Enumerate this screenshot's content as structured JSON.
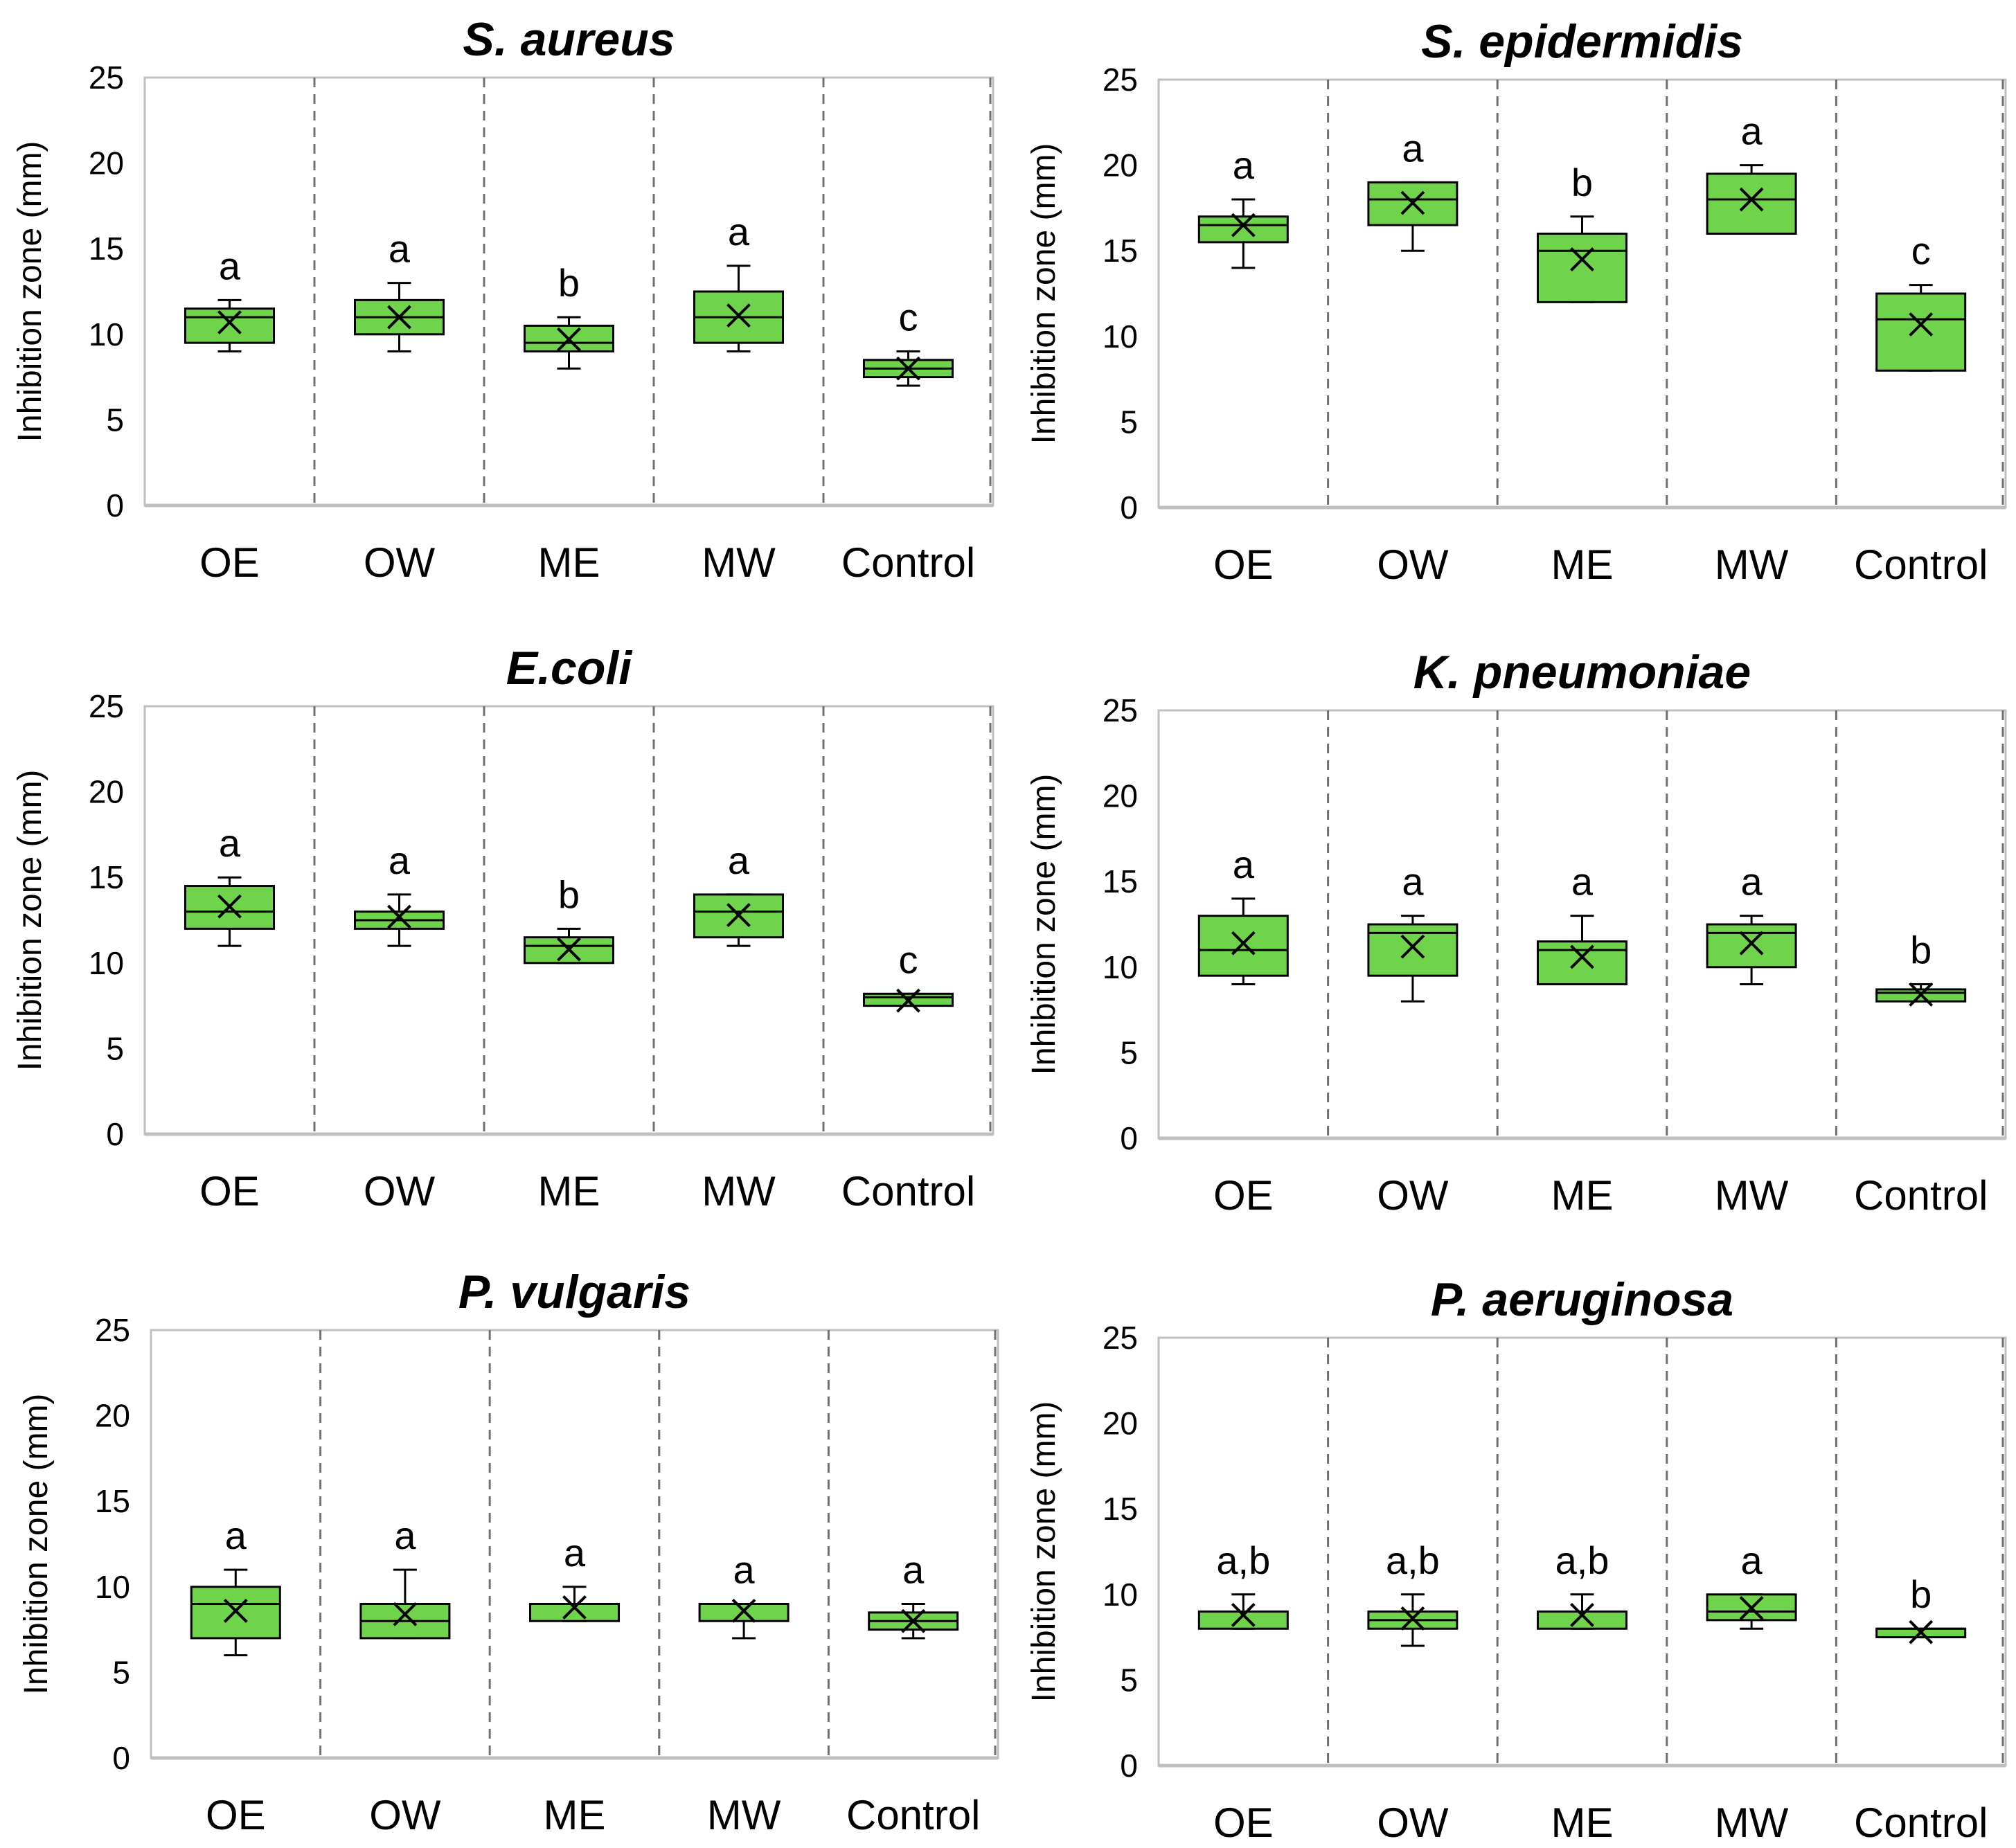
{
  "chart_data": [
    {
      "type": "box",
      "title": "S. aureus",
      "ylabel": "Inhibition zone (mm)",
      "ylim": [
        0,
        25
      ],
      "yticks": [
        0,
        5,
        10,
        15,
        20,
        25
      ],
      "categories": [
        "OE",
        "OW",
        "ME",
        "MW",
        "Control"
      ],
      "boxes": [
        {
          "min": 9,
          "q1": 9.5,
          "median": 11,
          "q3": 11.5,
          "max": 12,
          "mean": 10.7,
          "letter": "a"
        },
        {
          "min": 9,
          "q1": 10,
          "median": 11,
          "q3": 12,
          "max": 13,
          "mean": 11,
          "letter": "a"
        },
        {
          "min": 8,
          "q1": 9,
          "median": 9.5,
          "q3": 10.5,
          "max": 11,
          "mean": 9.7,
          "letter": "b"
        },
        {
          "min": 9,
          "q1": 9.5,
          "median": 11,
          "q3": 12.5,
          "max": 14,
          "mean": 11.1,
          "letter": "a"
        },
        {
          "min": 7,
          "q1": 7.5,
          "median": 8,
          "q3": 8.5,
          "max": 9,
          "mean": 8,
          "letter": "c"
        }
      ]
    },
    {
      "type": "box",
      "title": "S. epidermidis",
      "ylabel": "Inhibition zone (mm)",
      "ylim": [
        0,
        25
      ],
      "yticks": [
        0,
        5,
        10,
        15,
        20,
        25
      ],
      "categories": [
        "OE",
        "OW",
        "ME",
        "MW",
        "Control"
      ],
      "boxes": [
        {
          "min": 14,
          "q1": 15.5,
          "median": 16.5,
          "q3": 17,
          "max": 18,
          "mean": 16.5,
          "letter": "a"
        },
        {
          "min": 15,
          "q1": 16.5,
          "median": 18,
          "q3": 19,
          "max": 19,
          "mean": 17.8,
          "letter": "a"
        },
        {
          "min": 12,
          "q1": 12,
          "median": 15,
          "q3": 16,
          "max": 17,
          "mean": 14.5,
          "letter": "b"
        },
        {
          "min": 16,
          "q1": 16,
          "median": 18,
          "q3": 19.5,
          "max": 20,
          "mean": 18,
          "letter": "a"
        },
        {
          "min": 8,
          "q1": 8,
          "median": 11,
          "q3": 12.5,
          "max": 13,
          "mean": 10.7,
          "letter": "c"
        }
      ]
    },
    {
      "type": "box",
      "title": "E.coli",
      "ylabel": "Inhibition zone (mm)",
      "ylim": [
        0,
        25
      ],
      "yticks": [
        0,
        5,
        10,
        15,
        20,
        25
      ],
      "categories": [
        "OE",
        "OW",
        "ME",
        "MW",
        "Control"
      ],
      "boxes": [
        {
          "min": 11,
          "q1": 12,
          "median": 13,
          "q3": 14.5,
          "max": 15,
          "mean": 13.3,
          "letter": "a"
        },
        {
          "min": 11,
          "q1": 12,
          "median": 12.5,
          "q3": 13,
          "max": 14,
          "mean": 12.7,
          "letter": "a"
        },
        {
          "min": 10,
          "q1": 10,
          "median": 11,
          "q3": 11.5,
          "max": 12,
          "mean": 10.8,
          "letter": "b"
        },
        {
          "min": 11,
          "q1": 11.5,
          "median": 13,
          "q3": 14,
          "max": 14,
          "mean": 12.8,
          "letter": "a"
        },
        {
          "min": 7.5,
          "q1": 7.5,
          "median": 8,
          "q3": 8.2,
          "max": 8.2,
          "mean": 7.8,
          "letter": "c"
        }
      ]
    },
    {
      "type": "box",
      "title": "K. pneumoniae",
      "ylabel": "Inhibition zone (mm)",
      "ylim": [
        0,
        25
      ],
      "yticks": [
        0,
        5,
        10,
        15,
        20,
        25
      ],
      "categories": [
        "OE",
        "OW",
        "ME",
        "MW",
        "Control"
      ],
      "boxes": [
        {
          "min": 9,
          "q1": 9.5,
          "median": 11,
          "q3": 13,
          "max": 14,
          "mean": 11.4,
          "letter": "a"
        },
        {
          "min": 8,
          "q1": 9.5,
          "median": 12,
          "q3": 12.5,
          "max": 13,
          "mean": 11.2,
          "letter": "a"
        },
        {
          "min": 9,
          "q1": 9,
          "median": 11,
          "q3": 11.5,
          "max": 13,
          "mean": 10.6,
          "letter": "a"
        },
        {
          "min": 9,
          "q1": 10,
          "median": 12,
          "q3": 12.5,
          "max": 13,
          "mean": 11.4,
          "letter": "a"
        },
        {
          "min": 8,
          "q1": 8,
          "median": 8.5,
          "q3": 8.7,
          "max": 9,
          "mean": 8.4,
          "letter": "b"
        }
      ]
    },
    {
      "type": "box",
      "title": "P. vulgaris",
      "ylabel": "Inhibition zone (mm)",
      "ylim": [
        0,
        25
      ],
      "yticks": [
        0,
        5,
        10,
        15,
        20,
        25
      ],
      "categories": [
        "OE",
        "OW",
        "ME",
        "MW",
        "Control"
      ],
      "boxes": [
        {
          "min": 6,
          "q1": 7,
          "median": 9,
          "q3": 10,
          "max": 11,
          "mean": 8.6,
          "letter": "a"
        },
        {
          "min": 7,
          "q1": 7,
          "median": 8,
          "q3": 9,
          "max": 11,
          "mean": 8.4,
          "letter": "a"
        },
        {
          "min": 8,
          "q1": 8,
          "median": 9,
          "q3": 9,
          "max": 10,
          "mean": 8.8,
          "letter": "a"
        },
        {
          "min": 7,
          "q1": 8,
          "median": 9,
          "q3": 9,
          "max": 9,
          "mean": 8.6,
          "letter": "a"
        },
        {
          "min": 7,
          "q1": 7.5,
          "median": 8,
          "q3": 8.5,
          "max": 9,
          "mean": 8,
          "letter": "a"
        }
      ]
    },
    {
      "type": "box",
      "title": "P. aeruginosa",
      "ylabel": "Inhibition zone (mm)",
      "ylim": [
        0,
        25
      ],
      "yticks": [
        0,
        5,
        10,
        15,
        20,
        25
      ],
      "categories": [
        "OE",
        "OW",
        "ME",
        "MW",
        "Control"
      ],
      "boxes": [
        {
          "min": 8,
          "q1": 8,
          "median": 9,
          "q3": 9,
          "max": 10,
          "mean": 8.8,
          "letter": "a,b"
        },
        {
          "min": 7,
          "q1": 8,
          "median": 8.5,
          "q3": 9,
          "max": 10,
          "mean": 8.6,
          "letter": "a,b"
        },
        {
          "min": 8,
          "q1": 8,
          "median": 9,
          "q3": 9,
          "max": 10,
          "mean": 8.8,
          "letter": "a,b"
        },
        {
          "min": 8,
          "q1": 8.5,
          "median": 9,
          "q3": 10,
          "max": 10,
          "mean": 9.2,
          "letter": "a"
        },
        {
          "min": 7.5,
          "q1": 7.5,
          "median": 8,
          "q3": 8,
          "max": 8,
          "mean": 7.8,
          "letter": "b"
        }
      ]
    }
  ],
  "colors": {
    "box_fill": "#6fd44c",
    "stroke": "#000000",
    "frame": "#bfbfbf",
    "divider": "#707070",
    "text": "#000000"
  }
}
